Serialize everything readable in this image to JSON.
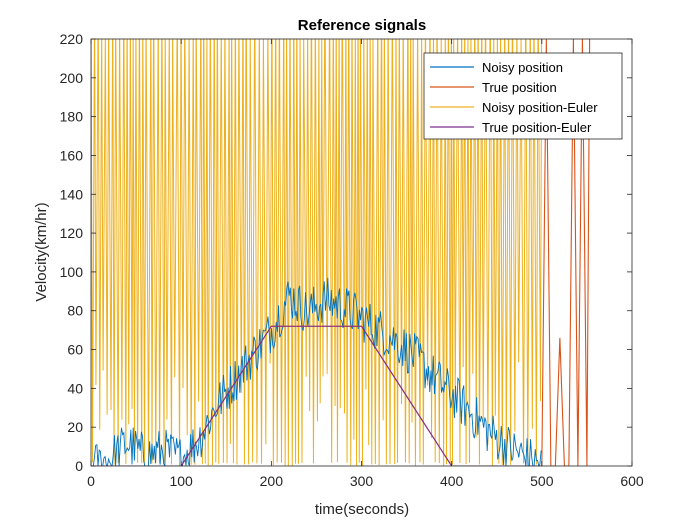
{
  "chart_data": {
    "type": "line",
    "title": "Reference signals",
    "xlabel": "time(seconds)",
    "ylabel": "Velocity(km/hr)",
    "xlim": [
      0,
      600
    ],
    "ylim": [
      0,
      220
    ],
    "xticks": [
      0,
      100,
      200,
      300,
      400,
      500,
      600
    ],
    "yticks": [
      0,
      20,
      40,
      60,
      80,
      100,
      120,
      140,
      160,
      180,
      200,
      220
    ],
    "grid": false,
    "legend_position": "top-right",
    "series": [
      {
        "name": "Noisy position",
        "color": "#0072BD",
        "x": [
          0,
          20,
          40,
          60,
          80,
          100,
          120,
          140,
          160,
          180,
          200,
          220,
          240,
          260,
          280,
          300,
          320,
          340,
          360,
          380,
          400,
          420,
          440,
          460,
          480,
          500
        ],
        "y": [
          0,
          3,
          12,
          5,
          8,
          4,
          14,
          32,
          45,
          58,
          70,
          88,
          79,
          86,
          82,
          76,
          70,
          64,
          56,
          46,
          37,
          28,
          18,
          11,
          5,
          0
        ]
      },
      {
        "name": "True position",
        "color": "#D95319",
        "x": [
          0,
          100,
          200,
          300,
          400,
          480,
          500,
          505,
          510,
          515,
          520,
          525,
          530,
          535,
          540,
          545,
          550,
          553
        ],
        "y": [
          0,
          0,
          72,
          72,
          0,
          0,
          0,
          220,
          0,
          0,
          66,
          0,
          0,
          220,
          0,
          220,
          0,
          220
        ]
      },
      {
        "name": "Noisy position-Euler",
        "color": "#EDB120",
        "x": [
          0,
          500
        ],
        "y": [
          0,
          220
        ]
      },
      {
        "name": "True position-Euler",
        "color": "#7E2F8E",
        "x": [
          0,
          100,
          200,
          300,
          400,
          500
        ],
        "y": [
          0,
          0,
          72,
          72,
          0,
          0
        ]
      }
    ]
  }
}
